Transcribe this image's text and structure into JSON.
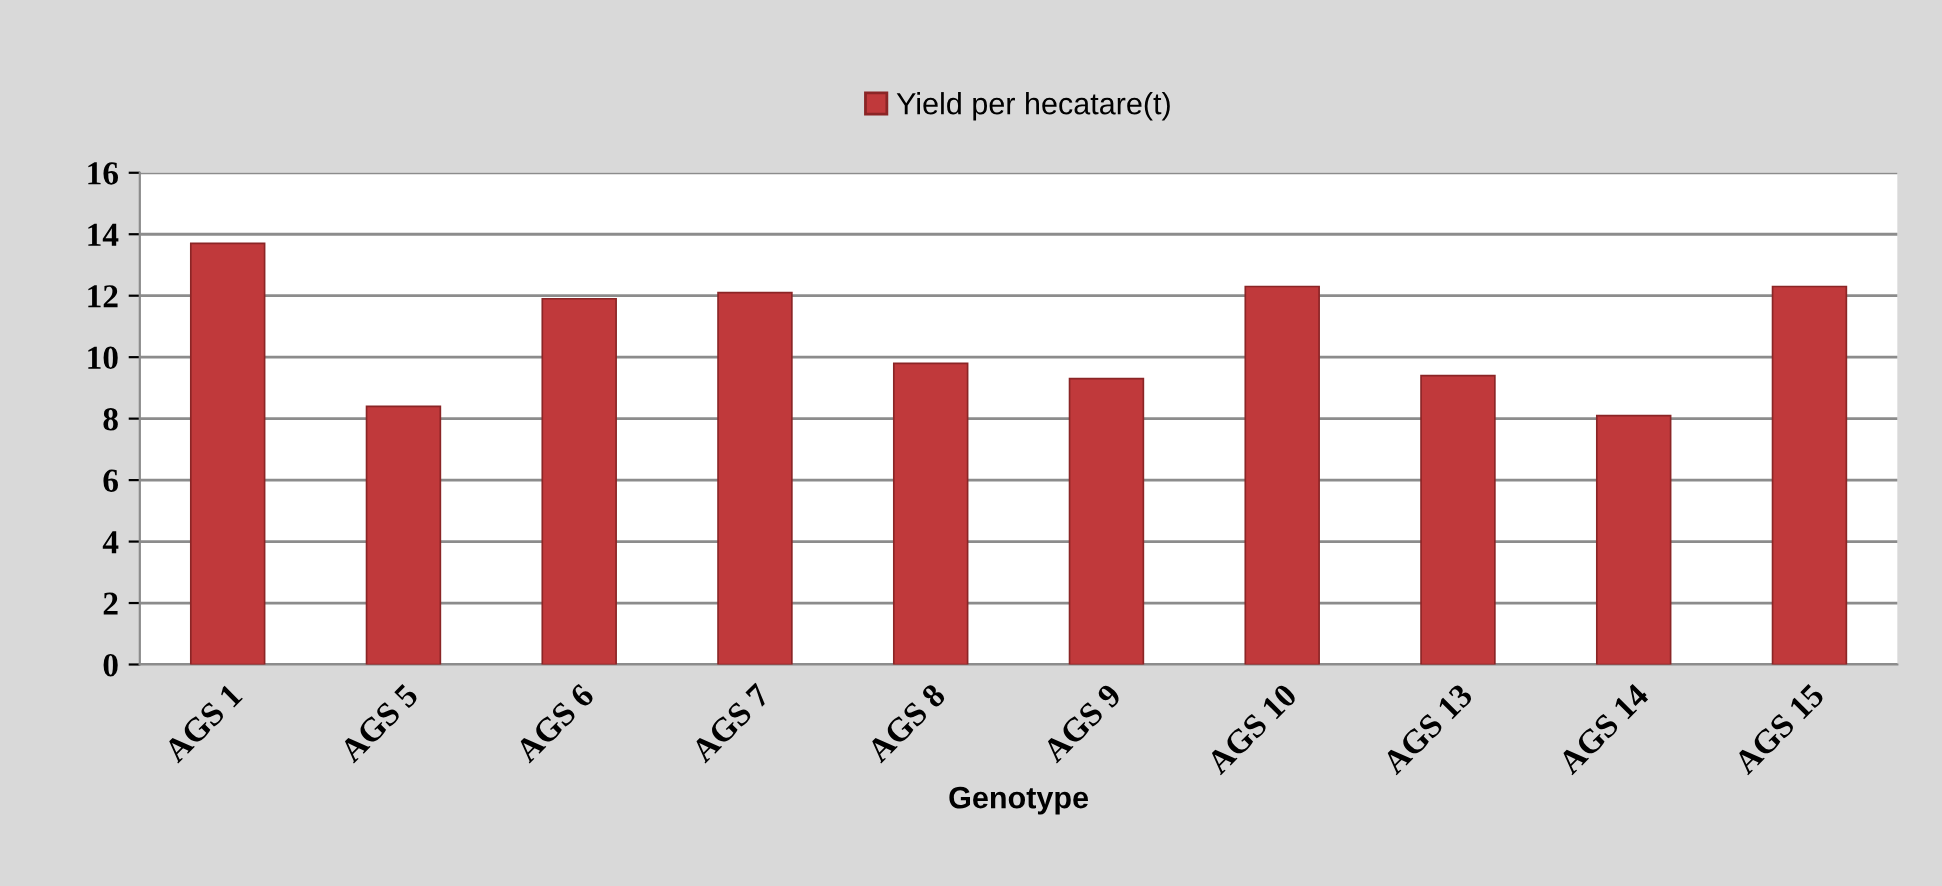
{
  "chart_data": {
    "type": "bar",
    "categories": [
      "AGS 1",
      "AGS 5",
      "AGS 6",
      "AGS 7",
      "AGS 8",
      "AGS 9",
      "AGS 10",
      "AGS 13",
      "AGS 14",
      "AGS 15"
    ],
    "series": [
      {
        "name": "Yield per hecatare(t)",
        "color": "#c0393b",
        "values": [
          13.7,
          8.4,
          11.9,
          12.1,
          9.8,
          9.3,
          12.3,
          9.4,
          8.1,
          12.3
        ]
      }
    ],
    "xlabel": "Genotype",
    "ylim": [
      0,
      16
    ],
    "yticks": [
      0,
      2,
      4,
      6,
      8,
      10,
      12,
      14,
      16
    ],
    "grid": "y",
    "legend": "top"
  }
}
